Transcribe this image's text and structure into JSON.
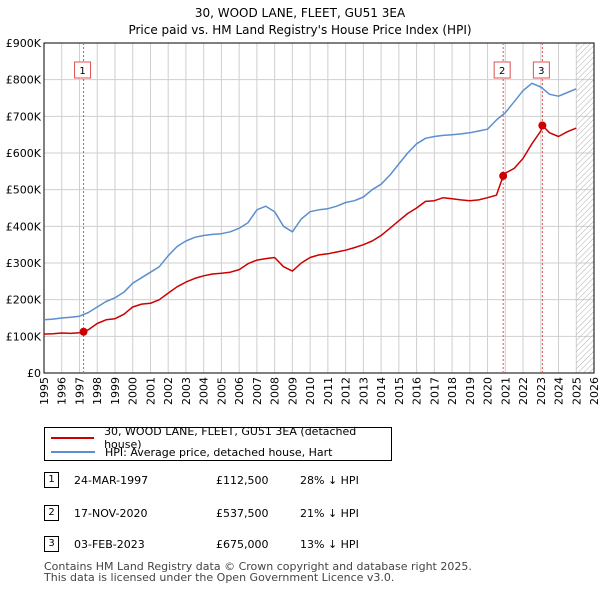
{
  "colors": {
    "property_line": "#cc0000",
    "hpi_line": "#5b8fd0",
    "sale_vline": "#e05050",
    "grid": "#cfcfcf",
    "future_hatch": "#b0b0b0"
  },
  "chart_data": {
    "type": "line",
    "title": "30, WOOD LANE, FLEET, GU51 3EA",
    "subtitle": "Price paid vs. HM Land Registry's House Price Index (HPI)",
    "xlabel": "",
    "ylabel": "",
    "xlim": [
      1995.0,
      2026.0
    ],
    "ylim": [
      0,
      900000
    ],
    "grid": true,
    "x_ticks": [
      1995,
      1996,
      1997,
      1998,
      1999,
      2000,
      2001,
      2002,
      2003,
      2004,
      2005,
      2006,
      2007,
      2008,
      2009,
      2010,
      2011,
      2012,
      2013,
      2014,
      2015,
      2016,
      2017,
      2018,
      2019,
      2020,
      2021,
      2022,
      2023,
      2024,
      2025,
      2026
    ],
    "x_tick_labels": [
      "1995",
      "1996",
      "1997",
      "1998",
      "1999",
      "2000",
      "2001",
      "2002",
      "2003",
      "2004",
      "2005",
      "2006",
      "2007",
      "2008",
      "2009",
      "2010",
      "2011",
      "2012",
      "2013",
      "2014",
      "2015",
      "2016",
      "2017",
      "2018",
      "2019",
      "2020",
      "2021",
      "2022",
      "2023",
      "2024",
      "2025",
      "2026"
    ],
    "y_ticks": [
      0,
      100000,
      200000,
      300000,
      400000,
      500000,
      600000,
      700000,
      800000,
      900000
    ],
    "y_tick_labels": [
      "£0",
      "£100K",
      "£200K",
      "£300K",
      "£400K",
      "£500K",
      "£600K",
      "£700K",
      "£800K",
      "£900K"
    ],
    "future_from": 2025.0,
    "series": [
      {
        "name": "30, WOOD LANE, FLEET, GU51 3EA (detached house)",
        "color": "#cc0000",
        "x": [
          1995.0,
          1995.5,
          1996.0,
          1996.5,
          1997.0,
          1997.23,
          1997.5,
          1998.0,
          1998.5,
          1999.0,
          1999.5,
          2000.0,
          2000.5,
          2001.0,
          2001.5,
          2002.0,
          2002.5,
          2003.0,
          2003.5,
          2004.0,
          2004.5,
          2005.0,
          2005.5,
          2006.0,
          2006.5,
          2007.0,
          2007.5,
          2008.0,
          2008.5,
          2009.0,
          2009.5,
          2010.0,
          2010.5,
          2011.0,
          2011.5,
          2012.0,
          2012.5,
          2013.0,
          2013.5,
          2014.0,
          2014.5,
          2015.0,
          2015.5,
          2016.0,
          2016.5,
          2017.0,
          2017.5,
          2018.0,
          2018.5,
          2019.0,
          2019.5,
          2020.0,
          2020.5,
          2020.88,
          2021.0,
          2021.5,
          2022.0,
          2022.5,
          2023.0,
          2023.09,
          2023.5,
          2024.0,
          2024.5,
          2025.0
        ],
        "values": [
          106000,
          107000,
          109000,
          108000,
          110000,
          112500,
          118000,
          135000,
          145000,
          148000,
          160000,
          180000,
          188000,
          190000,
          200000,
          218000,
          235000,
          248000,
          258000,
          265000,
          270000,
          272000,
          275000,
          282000,
          298000,
          308000,
          312000,
          315000,
          290000,
          278000,
          300000,
          315000,
          322000,
          325000,
          330000,
          335000,
          342000,
          350000,
          360000,
          375000,
          395000,
          415000,
          435000,
          450000,
          468000,
          470000,
          478000,
          475000,
          472000,
          470000,
          472000,
          478000,
          485000,
          537500,
          545000,
          558000,
          585000,
          625000,
          660000,
          675000,
          655000,
          645000,
          658000,
          668000
        ]
      },
      {
        "name": "HPI: Average price, detached house, Hart",
        "color": "#5b8fd0",
        "x": [
          1995.0,
          1995.5,
          1996.0,
          1996.5,
          1997.0,
          1997.5,
          1998.0,
          1998.5,
          1999.0,
          1999.5,
          2000.0,
          2000.5,
          2001.0,
          2001.5,
          2002.0,
          2002.5,
          2003.0,
          2003.5,
          2004.0,
          2004.5,
          2005.0,
          2005.5,
          2006.0,
          2006.5,
          2007.0,
          2007.5,
          2008.0,
          2008.5,
          2009.0,
          2009.5,
          2010.0,
          2010.5,
          2011.0,
          2011.5,
          2012.0,
          2012.5,
          2013.0,
          2013.5,
          2014.0,
          2014.5,
          2015.0,
          2015.5,
          2016.0,
          2016.5,
          2017.0,
          2017.5,
          2018.0,
          2018.5,
          2019.0,
          2019.5,
          2020.0,
          2020.5,
          2021.0,
          2021.5,
          2022.0,
          2022.5,
          2023.0,
          2023.5,
          2024.0,
          2024.5,
          2025.0
        ],
        "values": [
          145000,
          147000,
          150000,
          152000,
          155000,
          165000,
          180000,
          195000,
          205000,
          220000,
          245000,
          260000,
          275000,
          290000,
          320000,
          345000,
          360000,
          370000,
          375000,
          378000,
          380000,
          385000,
          395000,
          410000,
          445000,
          455000,
          440000,
          400000,
          385000,
          420000,
          440000,
          445000,
          448000,
          455000,
          465000,
          470000,
          480000,
          500000,
          515000,
          540000,
          570000,
          600000,
          625000,
          640000,
          645000,
          648000,
          650000,
          652000,
          655000,
          660000,
          665000,
          690000,
          710000,
          740000,
          770000,
          790000,
          780000,
          760000,
          755000,
          765000,
          775000
        ]
      }
    ],
    "sales": [
      {
        "label": "1",
        "x": 1997.23,
        "value": 112500
      },
      {
        "label": "2",
        "x": 2020.88,
        "value": 537500
      },
      {
        "label": "3",
        "x": 2023.09,
        "value": 675000
      }
    ]
  },
  "legend": {
    "property_label": "30, WOOD LANE, FLEET, GU51 3EA (detached house)",
    "hpi_label": "HPI: Average price, detached house, Hart"
  },
  "sales_table": [
    {
      "num": "1",
      "date": "24-MAR-1997",
      "price": "£112,500",
      "hpi": "28% ↓ HPI"
    },
    {
      "num": "2",
      "date": "17-NOV-2020",
      "price": "£537,500",
      "hpi": "21% ↓ HPI"
    },
    {
      "num": "3",
      "date": "03-FEB-2023",
      "price": "£675,000",
      "hpi": "13% ↓ HPI"
    }
  ],
  "footer": {
    "line1": "Contains HM Land Registry data © Crown copyright and database right 2025.",
    "line2": "This data is licensed under the Open Government Licence v3.0."
  }
}
